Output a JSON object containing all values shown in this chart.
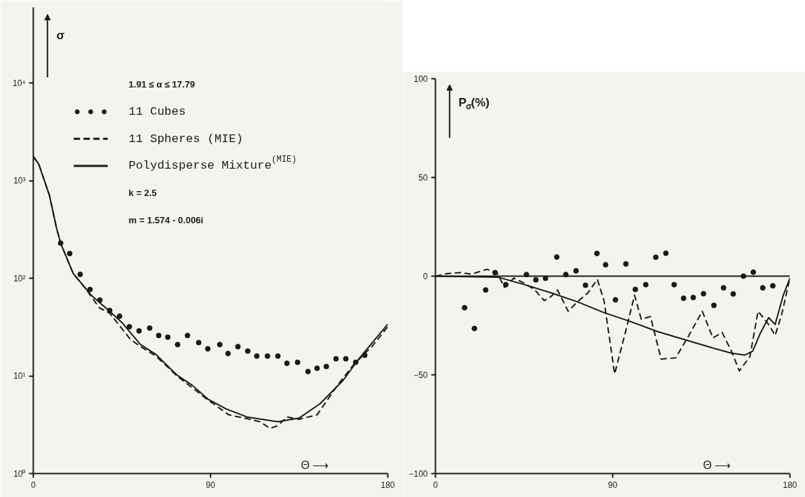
{
  "chart_data": [
    {
      "type": "line",
      "xlabel": "Θ ⟶",
      "ylabel": "σ",
      "log": "y",
      "xlim": [
        0,
        180
      ],
      "xticks": [
        0,
        90,
        180
      ],
      "ylim": [
        1,
        60000
      ],
      "yticks": [
        {
          "value": 1,
          "label": "10⁰"
        },
        {
          "value": 10,
          "label": "10¹"
        },
        {
          "value": 100,
          "label": "10²"
        },
        {
          "value": 1000,
          "label": "10³"
        },
        {
          "value": 10000,
          "label": "10⁴"
        }
      ],
      "legend": "top left",
      "annotations": [
        "1.91 ≤ α ≤ 17.79",
        "k = 2.5",
        "m = 1.574 - 0.006i"
      ],
      "series": [
        {
          "name": "11 Cubes",
          "type": "scatter",
          "marker": "circle",
          "color": "#1a1a1a",
          "x": [
            13.9,
            18.5,
            23.8,
            28.8,
            33.8,
            38.8,
            43.8,
            48.8,
            53.7,
            59.1,
            63.7,
            68.3,
            73.3,
            78.3,
            84.0,
            88.6,
            94.7,
            98.9,
            103.9,
            108.9,
            113.5,
            118.9,
            124.2,
            128.8,
            134.2,
            139.5,
            144.1,
            148.8,
            153.7,
            158.7,
            163.7,
            168.3
          ],
          "values": [
            230,
            180,
            110,
            77,
            60,
            47,
            41,
            32,
            29,
            31,
            26,
            25,
            21,
            26,
            22,
            19,
            21,
            17,
            20,
            18,
            16,
            16,
            16,
            13.5,
            13.8,
            11.1,
            12,
            12.5,
            15,
            15,
            13.8,
            16.3
          ]
        },
        {
          "name": "11 Spheres (MIE)",
          "line_style": "dashed",
          "color": "#1a1a1a",
          "x": [
            0,
            2.8,
            8.2,
            11.7,
            13.9,
            20.3,
            26.7,
            33.5,
            38.8,
            49.1,
            54.4,
            62.3,
            73,
            88.6,
            99.3,
            110,
            115,
            120.3,
            124.2,
            128.8,
            134.9,
            144.1,
            154.4,
            162.6,
            171.9,
            180
          ],
          "values": [
            1780,
            1480,
            710,
            335,
            229,
            112,
            78,
            50,
            44,
            24,
            20,
            16,
            10,
            5.7,
            4.0,
            3.6,
            3.4,
            2.9,
            3.1,
            3.8,
            3.6,
            4.0,
            8,
            13,
            20,
            32
          ]
        },
        {
          "name": "Polydisperse Mixture$^{(MIE)}$",
          "line_style": "solid",
          "color": "#1a1a1a",
          "x": [
            0,
            2.8,
            8.2,
            11.7,
            13.9,
            20.3,
            29.5,
            38.8,
            45.2,
            54.4,
            62.3,
            73,
            80.8,
            88.6,
            97.9,
            108.5,
            124.2,
            134.9,
            145.6,
            157.3,
            165.1,
            173,
            180
          ],
          "values": [
            1780,
            1480,
            710,
            335,
            229,
            112,
            67,
            46,
            35,
            21,
            16.6,
            10.2,
            8,
            5.8,
            4.6,
            3.8,
            3.4,
            3.7,
            5.2,
            9,
            14.8,
            23,
            34
          ]
        }
      ]
    },
    {
      "type": "line",
      "xlabel": "Θ ⟶",
      "ylabel": "P$_{σ}$(%)",
      "xlim": [
        0,
        180
      ],
      "xticks": [
        0,
        90,
        180
      ],
      "ylim": [
        -100,
        100
      ],
      "yticks": [
        -100,
        -50,
        0,
        50,
        100
      ],
      "ref_lines": [
        {
          "axis": "y",
          "value": 0,
          "color": "#1a1a1a"
        }
      ],
      "series": [
        {
          "type": "scatter",
          "marker": "circle",
          "color": "#1a1a1a",
          "x": [
            14.8,
            19.8,
            25.5,
            30.3,
            35.7,
            46.2,
            51,
            55.9,
            61.6,
            66.2,
            71.4,
            76.2,
            82,
            86.4,
            91.4,
            96.7,
            101.5,
            106.8,
            111.9,
            117,
            121.2,
            126,
            130.9,
            136.1,
            141.4,
            146.3,
            151.2,
            156.4,
            161.4,
            166.2,
            171.3
          ],
          "values": [
            -16,
            -26.5,
            -7,
            1.8,
            -4.3,
            0.8,
            -1.9,
            -1.1,
            9.7,
            0.8,
            2.7,
            -4.6,
            11.5,
            5.8,
            -12,
            6.2,
            -6.7,
            -4.3,
            9.6,
            11.6,
            -4.3,
            -11.2,
            -10.8,
            -8.9,
            -14.8,
            -5.9,
            -9,
            0,
            2,
            -5.9,
            -4.9
          ]
        },
        {
          "line_style": "dashed",
          "color": "#1a1a1a",
          "x": [
            0,
            6.1,
            12.8,
            18.2,
            26.3,
            31.7,
            35,
            39.8,
            45.2,
            50.5,
            55.3,
            58.6,
            62,
            67.4,
            72.1,
            77.5,
            82.2,
            85.6,
            91,
            96.4,
            101.1,
            104.5,
            109.2,
            114.6,
            122,
            128.7,
            135.5,
            140.9,
            145.6,
            150.3,
            154.3,
            159.7,
            163.8,
            169.2,
            172.5,
            175.9,
            180
          ],
          "values": [
            0,
            1.3,
            1.8,
            1,
            3.5,
            1,
            -5.7,
            -1,
            -3.6,
            -7,
            -12.4,
            -10.4,
            -7,
            -17.8,
            -13,
            -8.4,
            -1.6,
            -12.4,
            -49.5,
            -28.6,
            -9.7,
            -21.8,
            -20.5,
            -42,
            -41.4,
            -30,
            -17.8,
            -31.3,
            -28.6,
            -38,
            -48,
            -40.7,
            -17.8,
            -24.5,
            -30,
            -19,
            -1
          ]
        },
        {
          "line_style": "solid",
          "color": "#1a1a1a",
          "x": [
            0,
            31.7,
            45.2,
            58.6,
            72.1,
            85.6,
            99.1,
            112.6,
            126,
            139.5,
            150.3,
            157,
            161.1,
            165.1,
            169.2,
            172.5,
            176.6,
            180
          ],
          "values": [
            0,
            -0.5,
            -4.3,
            -8.4,
            -13,
            -18.5,
            -23,
            -28,
            -32,
            -36,
            -39,
            -40,
            -38,
            -28.6,
            -21,
            -24.5,
            -9.7,
            -1
          ]
        }
      ]
    }
  ]
}
